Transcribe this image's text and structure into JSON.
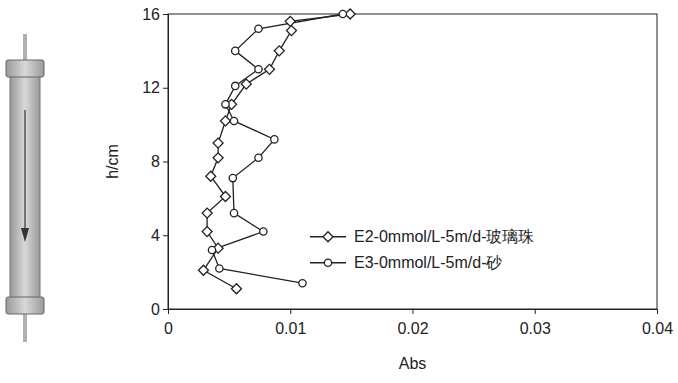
{
  "chart_data": {
    "type": "line",
    "x_label": "Abs",
    "y_label": "h/cm",
    "xlim": [
      0,
      0.04
    ],
    "xticks": [
      0,
      0.01,
      0.02,
      0.03,
      0.04
    ],
    "ylim": [
      0,
      16
    ],
    "yticks": [
      0,
      4,
      8,
      12,
      16
    ],
    "grid": false,
    "legend": "right",
    "series": [
      {
        "name": "E2-0mmol/L-5m/d-玻璃珠",
        "color": "#222222",
        "marker": "diamond",
        "line_style": "solid",
        "x": [
          0.0149,
          0.01,
          0.0101,
          0.0091,
          0.0083,
          0.0064,
          0.0052,
          0.0047,
          0.0041,
          0.0041,
          0.0035,
          0.0047,
          0.0032,
          0.0032,
          0.0041,
          0.0029,
          0.0056
        ],
        "values": [
          16.0,
          15.6,
          15.1,
          14.0,
          13.0,
          12.2,
          11.1,
          10.2,
          9.0,
          8.2,
          7.2,
          6.1,
          5.2,
          4.2,
          3.3,
          2.1,
          1.1
        ]
      },
      {
        "name": "E3-0mmol/L-5m/d-砂",
        "color": "#222222",
        "marker": "circle",
        "line_style": "solid",
        "x": [
          0.0143,
          0.0074,
          0.0055,
          0.0074,
          0.0055,
          0.0047,
          0.0054,
          0.0087,
          0.0074,
          0.0053,
          0.0054,
          0.0078,
          0.0036,
          0.0042,
          0.011
        ],
        "values": [
          16.0,
          15.2,
          14.0,
          13.0,
          12.1,
          11.1,
          10.2,
          9.2,
          8.2,
          7.1,
          5.2,
          4.2,
          3.2,
          2.2,
          1.4
        ]
      }
    ]
  }
}
